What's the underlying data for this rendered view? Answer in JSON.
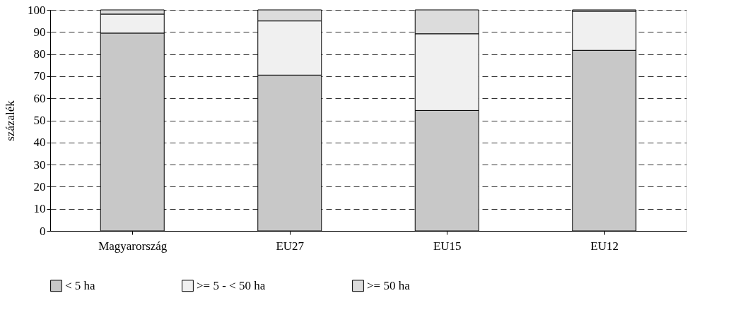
{
  "chart_data": {
    "type": "bar",
    "stacked": true,
    "ylabel": "százalék",
    "categories": [
      "Magyarország",
      "EU27",
      "EU15",
      "EU12"
    ],
    "series": [
      {
        "name": "< 5 ha",
        "color": "#c8c8c8",
        "values": [
          89.5,
          70.5,
          54.5,
          81.7
        ]
      },
      {
        "name": ">= 5 - < 50 ha",
        "color": "#f0f0f0",
        "values": [
          8.6,
          24.5,
          34.7,
          17.7
        ]
      },
      {
        "name": ">= 50 ha",
        "color": "#dcdcdc",
        "values": [
          1.9,
          5.0,
          10.8,
          0.6
        ]
      }
    ],
    "ylim": [
      0,
      100
    ],
    "yticks": [
      0,
      10,
      20,
      30,
      40,
      50,
      60,
      70,
      80,
      90,
      100
    ],
    "grid": "y",
    "legend": "bottom"
  }
}
